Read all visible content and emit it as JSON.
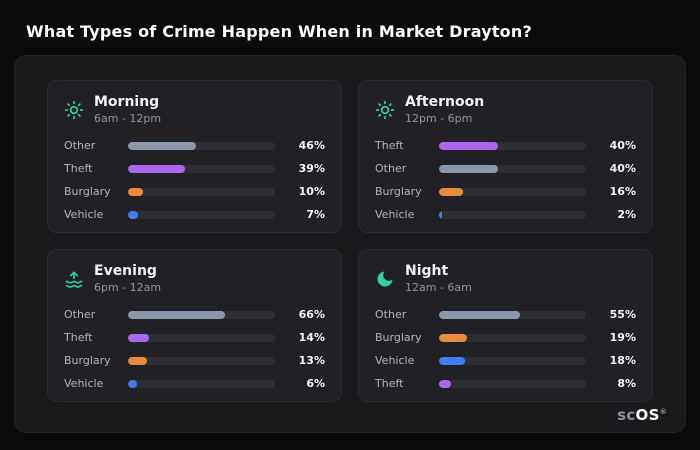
{
  "page": {
    "title": "What Types of Crime Happen When in Market Drayton?",
    "background": "#0b0b0d"
  },
  "logo": {
    "prefix": "sc",
    "suffix": "OS",
    "mark": "®"
  },
  "colors": {
    "other": "#8b97ab",
    "theft": "#ab68ee",
    "burglary": "#e78b3f",
    "vehicle": "#3f7ef2",
    "icon": "#35cfa4",
    "track": "#2e2f34",
    "panel": "#1a1a1d",
    "card": "#212125"
  },
  "cards": [
    {
      "id": "morning",
      "title": "Morning",
      "subtitle": "6am - 12pm",
      "icon": "sun-icon",
      "rows": [
        {
          "label": "Other",
          "value": 46,
          "display": "46%",
          "color": "#8b97ab"
        },
        {
          "label": "Theft",
          "value": 39,
          "display": "39%",
          "color": "#ab68ee"
        },
        {
          "label": "Burglary",
          "value": 10,
          "display": "10%",
          "color": "#e78b3f"
        },
        {
          "label": "Vehicle",
          "value": 7,
          "display": "7%",
          "color": "#3f7ef2"
        }
      ]
    },
    {
      "id": "afternoon",
      "title": "Afternoon",
      "subtitle": "12pm - 6pm",
      "icon": "sun-icon",
      "rows": [
        {
          "label": "Theft",
          "value": 40,
          "display": "40%",
          "color": "#ab68ee"
        },
        {
          "label": "Other",
          "value": 40,
          "display": "40%",
          "color": "#8b97ab"
        },
        {
          "label": "Burglary",
          "value": 16,
          "display": "16%",
          "color": "#e78b3f"
        },
        {
          "label": "Vehicle",
          "value": 2,
          "display": "2%",
          "color": "#3f7ef2"
        }
      ]
    },
    {
      "id": "evening",
      "title": "Evening",
      "subtitle": "6pm - 12am",
      "icon": "sunset-icon",
      "rows": [
        {
          "label": "Other",
          "value": 66,
          "display": "66%",
          "color": "#8b97ab"
        },
        {
          "label": "Theft",
          "value": 14,
          "display": "14%",
          "color": "#ab68ee"
        },
        {
          "label": "Burglary",
          "value": 13,
          "display": "13%",
          "color": "#e78b3f"
        },
        {
          "label": "Vehicle",
          "value": 6,
          "display": "6%",
          "color": "#3f7ef2"
        }
      ]
    },
    {
      "id": "night",
      "title": "Night",
      "subtitle": "12am - 6am",
      "icon": "moon-icon",
      "rows": [
        {
          "label": "Other",
          "value": 55,
          "display": "55%",
          "color": "#8b97ab"
        },
        {
          "label": "Burglary",
          "value": 19,
          "display": "19%",
          "color": "#e78b3f"
        },
        {
          "label": "Vehicle",
          "value": 18,
          "display": "18%",
          "color": "#3f7ef2"
        },
        {
          "label": "Theft",
          "value": 8,
          "display": "8%",
          "color": "#ab68ee"
        }
      ]
    }
  ],
  "chart_data": [
    {
      "type": "bar",
      "title": "Morning",
      "subtitle": "6am - 12pm",
      "categories": [
        "Other",
        "Theft",
        "Burglary",
        "Vehicle"
      ],
      "values": [
        46,
        39,
        10,
        7
      ],
      "unit": "%",
      "xlim": [
        0,
        100
      ],
      "orientation": "horizontal"
    },
    {
      "type": "bar",
      "title": "Afternoon",
      "subtitle": "12pm - 6pm",
      "categories": [
        "Theft",
        "Other",
        "Burglary",
        "Vehicle"
      ],
      "values": [
        40,
        40,
        16,
        2
      ],
      "unit": "%",
      "xlim": [
        0,
        100
      ],
      "orientation": "horizontal"
    },
    {
      "type": "bar",
      "title": "Evening",
      "subtitle": "6pm - 12am",
      "categories": [
        "Other",
        "Theft",
        "Burglary",
        "Vehicle"
      ],
      "values": [
        66,
        14,
        13,
        6
      ],
      "unit": "%",
      "xlim": [
        0,
        100
      ],
      "orientation": "horizontal"
    },
    {
      "type": "bar",
      "title": "Night",
      "subtitle": "12am - 6am",
      "categories": [
        "Other",
        "Burglary",
        "Vehicle",
        "Theft"
      ],
      "values": [
        55,
        19,
        18,
        8
      ],
      "unit": "%",
      "xlim": [
        0,
        100
      ],
      "orientation": "horizontal"
    }
  ]
}
